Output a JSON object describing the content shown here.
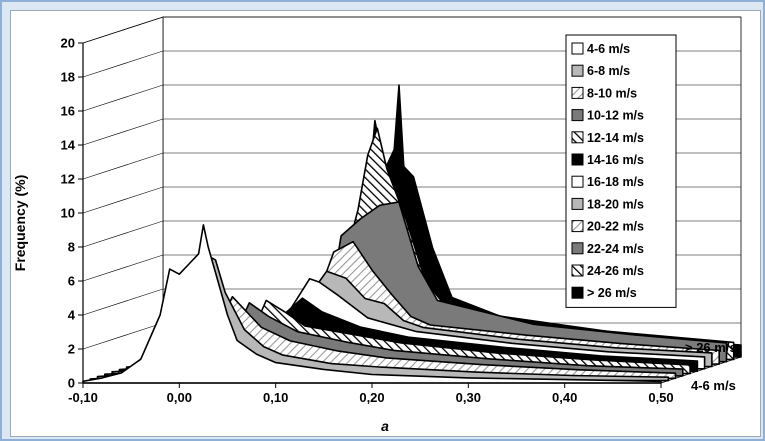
{
  "chart_data": {
    "type": "area",
    "projection": "3d-depth",
    "xlabel": "a",
    "ylabel": "Frequency (%)",
    "x_ticks": [
      "-0,10",
      "0,00",
      "0,10",
      "0,20",
      "0,30",
      "0,40",
      "0,50"
    ],
    "y_ticks": [
      "0",
      "2",
      "4",
      "6",
      "8",
      "10",
      "12",
      "14",
      "16",
      "18",
      "20"
    ],
    "xlim": [
      -0.1,
      0.5
    ],
    "ylim": [
      0,
      20
    ],
    "grid": true,
    "legend_position": "top-right",
    "depth_labels": {
      "back": "> 26 m/s",
      "front": "4-6 m/s"
    },
    "series": [
      {
        "name": "4-6 m/s",
        "pattern": "white",
        "points": [
          [
            -0.1,
            0.1
          ],
          [
            -0.08,
            0.3
          ],
          [
            -0.06,
            0.6
          ],
          [
            -0.04,
            1.4
          ],
          [
            -0.02,
            4
          ],
          [
            -0.01,
            6.7
          ],
          [
            0.0,
            6.4
          ],
          [
            0.01,
            7
          ],
          [
            0.02,
            7.6
          ],
          [
            0.025,
            9.3
          ],
          [
            0.03,
            8
          ],
          [
            0.04,
            6
          ],
          [
            0.05,
            4
          ],
          [
            0.06,
            2.5
          ],
          [
            0.08,
            1.7
          ],
          [
            0.1,
            1.2
          ],
          [
            0.15,
            0.8
          ],
          [
            0.2,
            0.5
          ],
          [
            0.25,
            0.4
          ],
          [
            0.3,
            0.3
          ],
          [
            0.4,
            0.2
          ],
          [
            0.5,
            0.1
          ]
        ]
      },
      {
        "name": "6-8 m/s",
        "pattern": "gray-light",
        "points": [
          [
            -0.1,
            0.1
          ],
          [
            -0.06,
            0.2
          ],
          [
            -0.03,
            0.8
          ],
          [
            0.0,
            3.5
          ],
          [
            0.01,
            6
          ],
          [
            0.02,
            7.4
          ],
          [
            0.03,
            7.1
          ],
          [
            0.04,
            5.2
          ],
          [
            0.06,
            3
          ],
          [
            0.08,
            2
          ],
          [
            0.1,
            1.5
          ],
          [
            0.15,
            1
          ],
          [
            0.2,
            0.8
          ],
          [
            0.3,
            0.5
          ],
          [
            0.4,
            0.3
          ],
          [
            0.5,
            0.2
          ]
        ]
      },
      {
        "name": "8-10 m/s",
        "pattern": "diag-light",
        "points": [
          [
            -0.1,
            0.1
          ],
          [
            0.0,
            0.5
          ],
          [
            0.02,
            2.5
          ],
          [
            0.04,
            4.8
          ],
          [
            0.05,
            4.2
          ],
          [
            0.07,
            3
          ],
          [
            0.1,
            2.2
          ],
          [
            0.15,
            1.6
          ],
          [
            0.2,
            1.2
          ],
          [
            0.3,
            0.8
          ],
          [
            0.4,
            0.5
          ],
          [
            0.5,
            0.3
          ]
        ]
      },
      {
        "name": "10-12 m/s",
        "pattern": "gray-dark",
        "points": [
          [
            -0.1,
            0.1
          ],
          [
            0.0,
            0.3
          ],
          [
            0.03,
            1.8
          ],
          [
            0.05,
            4.3
          ],
          [
            0.07,
            3.5
          ],
          [
            0.1,
            2.6
          ],
          [
            0.15,
            2
          ],
          [
            0.2,
            1.5
          ],
          [
            0.3,
            1
          ],
          [
            0.4,
            0.6
          ],
          [
            0.5,
            0.4
          ]
        ]
      },
      {
        "name": "12-14 m/s",
        "pattern": "diag-dark",
        "points": [
          [
            -0.1,
            0.1
          ],
          [
            0.02,
            0.5
          ],
          [
            0.05,
            3
          ],
          [
            0.06,
            4.3
          ],
          [
            0.08,
            3.6
          ],
          [
            0.1,
            2.8
          ],
          [
            0.15,
            2.3
          ],
          [
            0.2,
            1.8
          ],
          [
            0.3,
            1.2
          ],
          [
            0.4,
            0.8
          ],
          [
            0.5,
            0.5
          ]
        ]
      },
      {
        "name": "14-16 m/s",
        "pattern": "black",
        "points": [
          [
            -0.1,
            0.1
          ],
          [
            0.03,
            0.6
          ],
          [
            0.06,
            3.6
          ],
          [
            0.07,
            3.3
          ],
          [
            0.09,
            4.3
          ],
          [
            0.11,
            3.5
          ],
          [
            0.15,
            2.6
          ],
          [
            0.2,
            2
          ],
          [
            0.3,
            1.4
          ],
          [
            0.4,
            0.9
          ],
          [
            0.5,
            0.6
          ]
        ]
      },
      {
        "name": "16-18 m/s",
        "pattern": "white",
        "points": [
          [
            -0.1,
            0.1
          ],
          [
            0.04,
            0.8
          ],
          [
            0.07,
            3.5
          ],
          [
            0.09,
            5.3
          ],
          [
            0.1,
            5.1
          ],
          [
            0.12,
            4.3
          ],
          [
            0.15,
            3
          ],
          [
            0.2,
            2.2
          ],
          [
            0.3,
            1.5
          ],
          [
            0.4,
            1
          ],
          [
            0.5,
            0.7
          ]
        ]
      },
      {
        "name": "18-20 m/s",
        "pattern": "gray-light",
        "points": [
          [
            -0.1,
            0.1
          ],
          [
            0.05,
            1
          ],
          [
            0.08,
            4
          ],
          [
            0.1,
            5.6
          ],
          [
            0.12,
            5.2
          ],
          [
            0.14,
            4
          ],
          [
            0.16,
            3.7
          ],
          [
            0.18,
            2.7
          ],
          [
            0.2,
            2.3
          ],
          [
            0.3,
            1.6
          ],
          [
            0.4,
            1.1
          ],
          [
            0.5,
            0.8
          ]
        ]
      },
      {
        "name": "20-22 m/s",
        "pattern": "diag-light",
        "points": [
          [
            -0.1,
            0.1
          ],
          [
            0.05,
            1
          ],
          [
            0.08,
            3.5
          ],
          [
            0.1,
            6.6
          ],
          [
            0.12,
            7.2
          ],
          [
            0.14,
            5.5
          ],
          [
            0.16,
            4.1
          ],
          [
            0.18,
            2.8
          ],
          [
            0.2,
            2.3
          ],
          [
            0.3,
            1.7
          ],
          [
            0.4,
            1.2
          ],
          [
            0.5,
            0.8
          ]
        ]
      },
      {
        "name": "22-24 m/s",
        "pattern": "gray-dark",
        "points": [
          [
            -0.1,
            0.1
          ],
          [
            0.06,
            1
          ],
          [
            0.09,
            4
          ],
          [
            0.1,
            7.4
          ],
          [
            0.12,
            8.4
          ],
          [
            0.14,
            9.2
          ],
          [
            0.16,
            9.4
          ],
          [
            0.18,
            5.6
          ],
          [
            0.2,
            3.6
          ],
          [
            0.3,
            2.2
          ],
          [
            0.4,
            1.6
          ],
          [
            0.5,
            1.1
          ]
        ]
      },
      {
        "name": "24-26 m/s",
        "pattern": "diag-dark",
        "points": [
          [
            -0.1,
            0.1
          ],
          [
            0.06,
            1
          ],
          [
            0.09,
            4.5
          ],
          [
            0.11,
            8.8
          ],
          [
            0.12,
            12
          ],
          [
            0.13,
            13.6
          ],
          [
            0.14,
            11.2
          ],
          [
            0.16,
            8.2
          ],
          [
            0.18,
            4.6
          ],
          [
            0.2,
            3.2
          ],
          [
            0.3,
            2
          ],
          [
            0.4,
            1.5
          ],
          [
            0.5,
            1
          ]
        ]
      },
      {
        "name": "> 26 m/s",
        "pattern": "black",
        "points": [
          [
            -0.1,
            0.1
          ],
          [
            0.07,
            1
          ],
          [
            0.1,
            4
          ],
          [
            0.11,
            7.5
          ],
          [
            0.12,
            13.9
          ],
          [
            0.13,
            11
          ],
          [
            0.14,
            12.2
          ],
          [
            0.145,
            16
          ],
          [
            0.15,
            11.2
          ],
          [
            0.16,
            10.6
          ],
          [
            0.18,
            6.4
          ],
          [
            0.2,
            3.5
          ],
          [
            0.25,
            2.4
          ],
          [
            0.3,
            2
          ],
          [
            0.35,
            1.6
          ],
          [
            0.4,
            1.2
          ],
          [
            0.45,
            0.9
          ],
          [
            0.5,
            0.7
          ]
        ]
      }
    ]
  }
}
